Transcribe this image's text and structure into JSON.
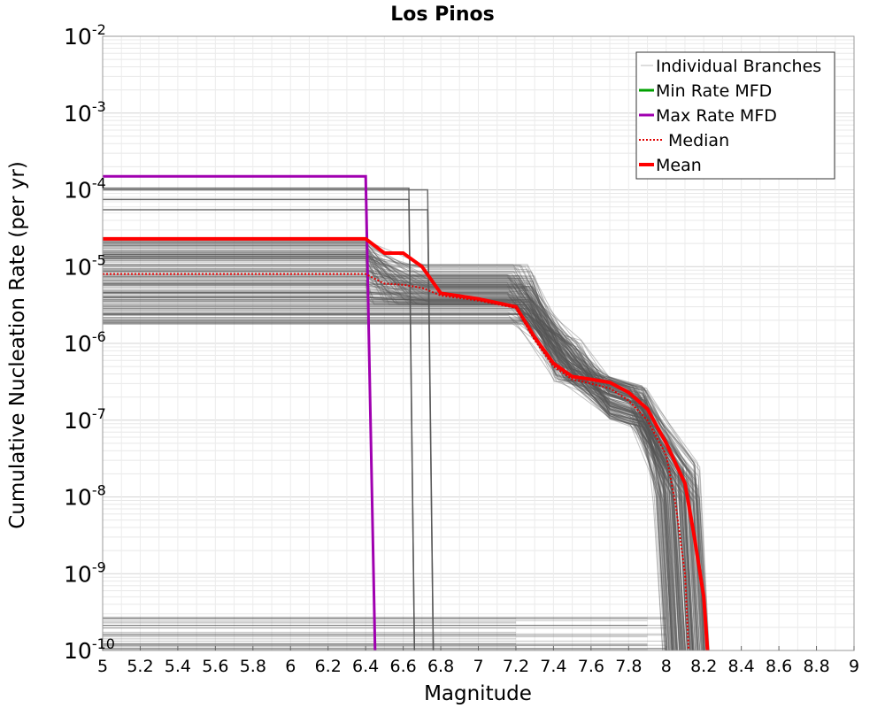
{
  "chart_data": {
    "type": "line",
    "title": "Los Pinos",
    "xlabel": "Magnitude",
    "ylabel": "Cumulative Nucleation Rate (per yr)",
    "xlim": [
      5,
      9
    ],
    "ylim": [
      1e-10,
      0.01
    ],
    "yscale": "log",
    "grid": true,
    "legend_position": "top-right",
    "x_ticks": [
      "5",
      "5.2",
      "5.4",
      "5.6",
      "5.8",
      "6",
      "6.2",
      "6.4",
      "6.6",
      "6.8",
      "7",
      "7.2",
      "7.4",
      "7.6",
      "7.8",
      "8",
      "8.2",
      "8.4",
      "8.6",
      "8.8",
      "9"
    ],
    "y_ticks": [
      {
        "value": 0.01,
        "base": "10",
        "exp": "-2"
      },
      {
        "value": 0.001,
        "base": "10",
        "exp": "-3"
      },
      {
        "value": 0.0001,
        "base": "10",
        "exp": "-4"
      },
      {
        "value": 1e-05,
        "base": "10",
        "exp": "-5"
      },
      {
        "value": 1e-06,
        "base": "10",
        "exp": "-6"
      },
      {
        "value": 1e-07,
        "base": "10",
        "exp": "-7"
      },
      {
        "value": 1e-08,
        "base": "10",
        "exp": "-8"
      },
      {
        "value": 1e-09,
        "base": "10",
        "exp": "-9"
      },
      {
        "value": 1e-10,
        "base": "10",
        "exp": "-10"
      }
    ],
    "colors": {
      "branches": "#555555",
      "min_rate": "#00a000",
      "max_rate": "#a000b0",
      "median": "#e00000",
      "mean": "#ff0000"
    },
    "series": [
      {
        "name": "Max Rate MFD",
        "style": "solid",
        "x": [
          5,
          6.4,
          6.45
        ],
        "y": [
          0.00015,
          0.00015,
          1e-10
        ]
      },
      {
        "name": "Mean",
        "style": "solid",
        "x": [
          5,
          6.4,
          6.5,
          6.6,
          6.7,
          6.8,
          7.0,
          7.2,
          7.3,
          7.4,
          7.5,
          7.6,
          7.7,
          7.8,
          7.9,
          8.0,
          8.1,
          8.15,
          8.2,
          8.22
        ],
        "y": [
          2.3e-05,
          2.3e-05,
          1.5e-05,
          1.5e-05,
          1e-05,
          4.5e-06,
          3.8e-06,
          3e-06,
          1.2e-06,
          5.5e-07,
          3.7e-07,
          3.4e-07,
          3.1e-07,
          2.3e-07,
          1.4e-07,
          5e-08,
          1.5e-08,
          3e-09,
          5e-10,
          1e-10
        ]
      },
      {
        "name": "Median",
        "style": "dotted",
        "x": [
          5,
          6.4,
          6.5,
          6.6,
          6.7,
          6.8,
          7.0,
          7.2,
          7.3,
          7.4,
          7.5,
          7.6,
          7.7,
          7.8,
          7.9,
          8.0,
          8.05,
          8.1,
          8.12
        ],
        "y": [
          8e-06,
          8e-06,
          6e-06,
          5.8e-06,
          5.3e-06,
          4.2e-06,
          3.6e-06,
          2.9e-06,
          1.1e-06,
          5e-07,
          3.4e-07,
          3e-07,
          2.6e-07,
          1.8e-07,
          1e-07,
          3.5e-08,
          8e-09,
          1e-09,
          1e-10
        ]
      }
    ],
    "branch_high_rates": [
      0.000105,
      0.0001,
      7.5e-05,
      5.5e-05
    ],
    "legend": [
      "Individual Branches",
      "Min Rate MFD",
      "Max Rate MFD",
      "Median",
      "Mean"
    ]
  }
}
